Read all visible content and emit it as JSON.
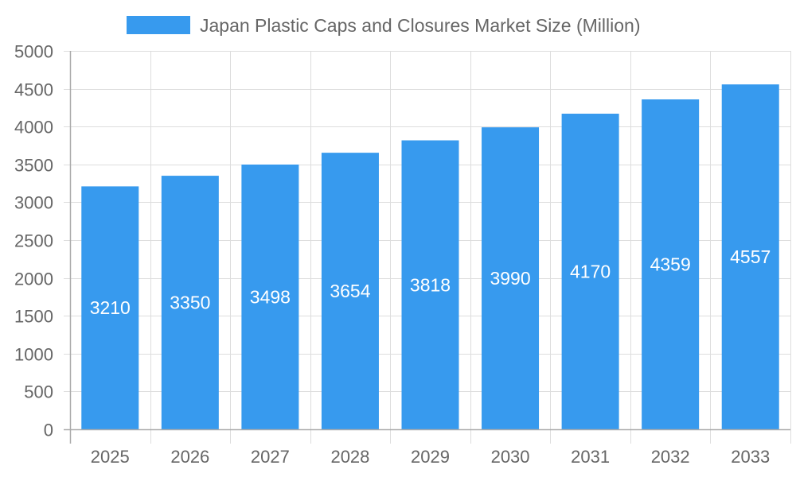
{
  "chart_data": {
    "type": "bar",
    "categories": [
      "2025",
      "2026",
      "2027",
      "2028",
      "2029",
      "2030",
      "2031",
      "2032",
      "2033"
    ],
    "series": [
      {
        "name": "Japan Plastic Caps and Closures Market Size (Million)",
        "values": [
          3210,
          3350,
          3498,
          3654,
          3818,
          3990,
          4170,
          4359,
          4557
        ],
        "color": "#379AEE"
      }
    ],
    "ylim": [
      0,
      5000
    ],
    "yticks": [
      0,
      500,
      1000,
      1500,
      2000,
      2500,
      3000,
      3500,
      4000,
      4500,
      5000
    ],
    "grid": true,
    "legend": "top-center",
    "data_labels": true
  }
}
